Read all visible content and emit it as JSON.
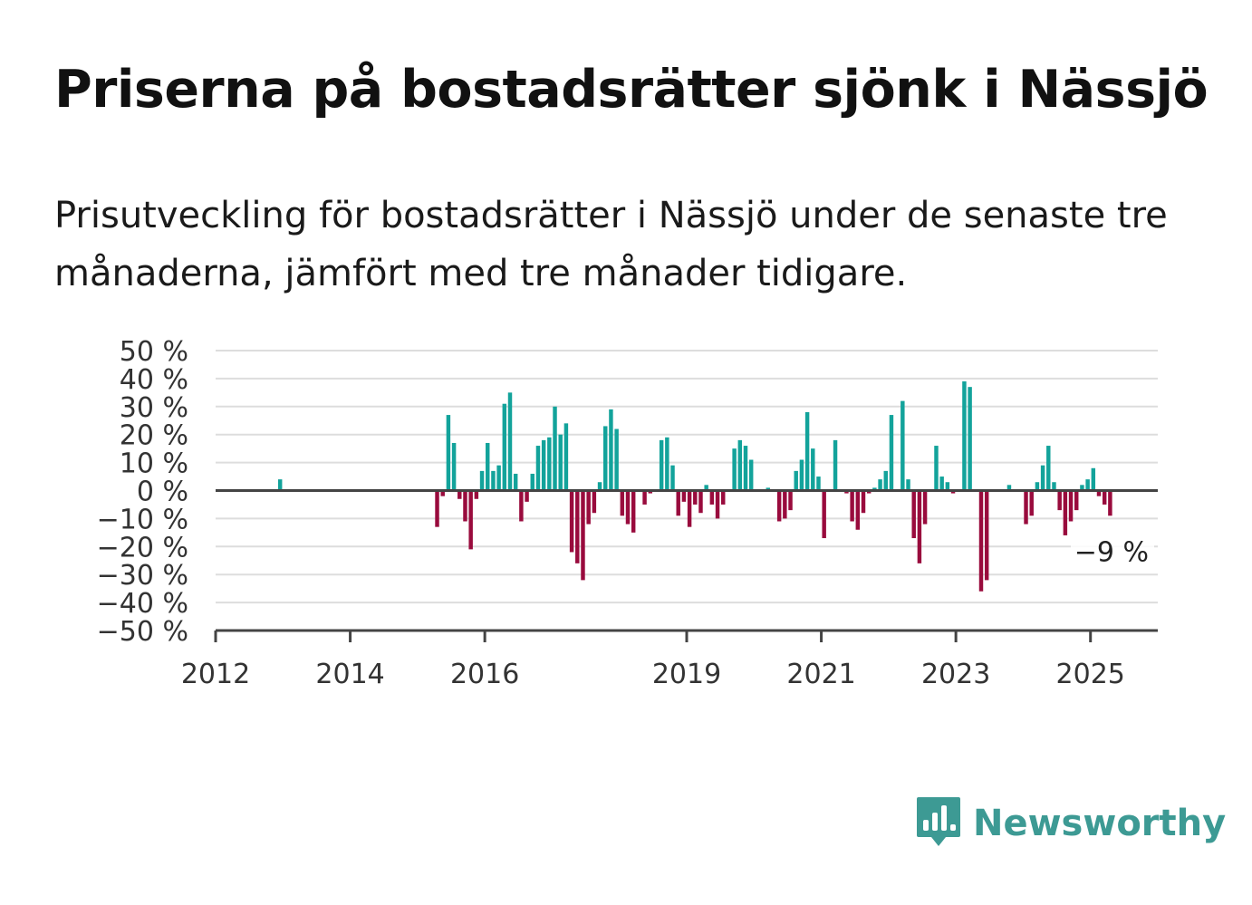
{
  "header": {
    "title": "Priserna på bostadsrätter sjönk i Nässjö",
    "subtitle": "Prisutveckling för bostadsrätter i Nässjö under de senaste tre månaderna, jämfört med tre månader tidigare."
  },
  "brand": {
    "name": "Newsworthy",
    "color": "#3d9a94"
  },
  "colors": {
    "positive": "#13a39b",
    "negative": "#990b3d",
    "grid": "#dddddd",
    "axis": "#444444"
  },
  "chart_data": {
    "type": "bar",
    "title": "Priserna på bostadsrätter sjönk i Nässjö",
    "subtitle": "Prisutveckling för bostadsrätter i Nässjö under de senaste tre månaderna, jämfört med tre månader tidigare.",
    "xlabel": "",
    "ylabel": "",
    "ylim": [
      -50,
      50
    ],
    "yticks": [
      50,
      40,
      30,
      20,
      10,
      0,
      -10,
      -20,
      -30,
      -40,
      -50
    ],
    "ytick_labels": [
      "50 %",
      "40 %",
      "30 %",
      "20 %",
      "10 %",
      "0 %",
      "−10 %",
      "−20 %",
      "−30 %",
      "−40 %",
      "−50 %"
    ],
    "x_range": [
      "2012-01",
      "2025-12"
    ],
    "xtick_labels": [
      "2012",
      "2014",
      "2016",
      "2019",
      "2021",
      "2023",
      "2025"
    ],
    "xtick_dates": [
      "2012-01",
      "2014-01",
      "2016-01",
      "2019-01",
      "2021-01",
      "2023-01",
      "2025-01"
    ],
    "grid": true,
    "last_value_label": "−9 %",
    "series": [
      {
        "values": [
          {
            "month": "2012-12",
            "value": 4
          },
          {
            "month": "2015-04",
            "value": -13
          },
          {
            "month": "2015-05",
            "value": -2
          },
          {
            "month": "2015-06",
            "value": 27
          },
          {
            "month": "2015-07",
            "value": 17
          },
          {
            "month": "2015-08",
            "value": -3
          },
          {
            "month": "2015-09",
            "value": -11
          },
          {
            "month": "2015-10",
            "value": -21
          },
          {
            "month": "2015-11",
            "value": -3
          },
          {
            "month": "2015-12",
            "value": 7
          },
          {
            "month": "2016-01",
            "value": 17
          },
          {
            "month": "2016-02",
            "value": 7
          },
          {
            "month": "2016-03",
            "value": 9
          },
          {
            "month": "2016-04",
            "value": 31
          },
          {
            "month": "2016-05",
            "value": 35
          },
          {
            "month": "2016-06",
            "value": 6
          },
          {
            "month": "2016-07",
            "value": -11
          },
          {
            "month": "2016-08",
            "value": -4
          },
          {
            "month": "2016-09",
            "value": 6
          },
          {
            "month": "2016-10",
            "value": 16
          },
          {
            "month": "2016-11",
            "value": 18
          },
          {
            "month": "2016-12",
            "value": 19
          },
          {
            "month": "2017-01",
            "value": 30
          },
          {
            "month": "2017-02",
            "value": 20
          },
          {
            "month": "2017-03",
            "value": 24
          },
          {
            "month": "2017-04",
            "value": -22
          },
          {
            "month": "2017-05",
            "value": -26
          },
          {
            "month": "2017-06",
            "value": -32
          },
          {
            "month": "2017-07",
            "value": -12
          },
          {
            "month": "2017-08",
            "value": -8
          },
          {
            "month": "2017-09",
            "value": 3
          },
          {
            "month": "2017-10",
            "value": 23
          },
          {
            "month": "2017-11",
            "value": 29
          },
          {
            "month": "2017-12",
            "value": 22
          },
          {
            "month": "2018-01",
            "value": -9
          },
          {
            "month": "2018-02",
            "value": -12
          },
          {
            "month": "2018-03",
            "value": -15
          },
          {
            "month": "2018-05",
            "value": -5
          },
          {
            "month": "2018-06",
            "value": -1
          },
          {
            "month": "2018-08",
            "value": 18
          },
          {
            "month": "2018-09",
            "value": 19
          },
          {
            "month": "2018-10",
            "value": 9
          },
          {
            "month": "2018-11",
            "value": -9
          },
          {
            "month": "2018-12",
            "value": -4
          },
          {
            "month": "2019-01",
            "value": -13
          },
          {
            "month": "2019-02",
            "value": -5
          },
          {
            "month": "2019-03",
            "value": -8
          },
          {
            "month": "2019-04",
            "value": 2
          },
          {
            "month": "2019-05",
            "value": -5
          },
          {
            "month": "2019-06",
            "value": -10
          },
          {
            "month": "2019-07",
            "value": -5
          },
          {
            "month": "2019-09",
            "value": 15
          },
          {
            "month": "2019-10",
            "value": 18
          },
          {
            "month": "2019-11",
            "value": 16
          },
          {
            "month": "2019-12",
            "value": 11
          },
          {
            "month": "2020-03",
            "value": 1
          },
          {
            "month": "2020-05",
            "value": -11
          },
          {
            "month": "2020-06",
            "value": -10
          },
          {
            "month": "2020-07",
            "value": -7
          },
          {
            "month": "2020-08",
            "value": 7
          },
          {
            "month": "2020-09",
            "value": 11
          },
          {
            "month": "2020-10",
            "value": 28
          },
          {
            "month": "2020-11",
            "value": 15
          },
          {
            "month": "2020-12",
            "value": 5
          },
          {
            "month": "2021-01",
            "value": -17
          },
          {
            "month": "2021-03",
            "value": 18
          },
          {
            "month": "2021-05",
            "value": -1
          },
          {
            "month": "2021-06",
            "value": -11
          },
          {
            "month": "2021-07",
            "value": -14
          },
          {
            "month": "2021-08",
            "value": -8
          },
          {
            "month": "2021-09",
            "value": -1
          },
          {
            "month": "2021-10",
            "value": 1
          },
          {
            "month": "2021-11",
            "value": 4
          },
          {
            "month": "2021-12",
            "value": 7
          },
          {
            "month": "2022-01",
            "value": 27
          },
          {
            "month": "2022-03",
            "value": 32
          },
          {
            "month": "2022-04",
            "value": 4
          },
          {
            "month": "2022-05",
            "value": -17
          },
          {
            "month": "2022-06",
            "value": -26
          },
          {
            "month": "2022-07",
            "value": -12
          },
          {
            "month": "2022-09",
            "value": 16
          },
          {
            "month": "2022-10",
            "value": 5
          },
          {
            "month": "2022-11",
            "value": 3
          },
          {
            "month": "2022-12",
            "value": -1
          },
          {
            "month": "2023-02",
            "value": 39
          },
          {
            "month": "2023-03",
            "value": 37
          },
          {
            "month": "2023-05",
            "value": -36
          },
          {
            "month": "2023-06",
            "value": -32
          },
          {
            "month": "2023-10",
            "value": 2
          },
          {
            "month": "2024-01",
            "value": -12
          },
          {
            "month": "2024-02",
            "value": -9
          },
          {
            "month": "2024-03",
            "value": 3
          },
          {
            "month": "2024-04",
            "value": 9
          },
          {
            "month": "2024-05",
            "value": 16
          },
          {
            "month": "2024-06",
            "value": 3
          },
          {
            "month": "2024-07",
            "value": -7
          },
          {
            "month": "2024-08",
            "value": -16
          },
          {
            "month": "2024-09",
            "value": -11
          },
          {
            "month": "2024-10",
            "value": -7
          },
          {
            "month": "2024-11",
            "value": 2
          },
          {
            "month": "2024-12",
            "value": 4
          },
          {
            "month": "2025-01",
            "value": 8
          },
          {
            "month": "2025-02",
            "value": -2
          },
          {
            "month": "2025-03",
            "value": -5
          },
          {
            "month": "2025-04",
            "value": -9
          }
        ]
      }
    ]
  }
}
